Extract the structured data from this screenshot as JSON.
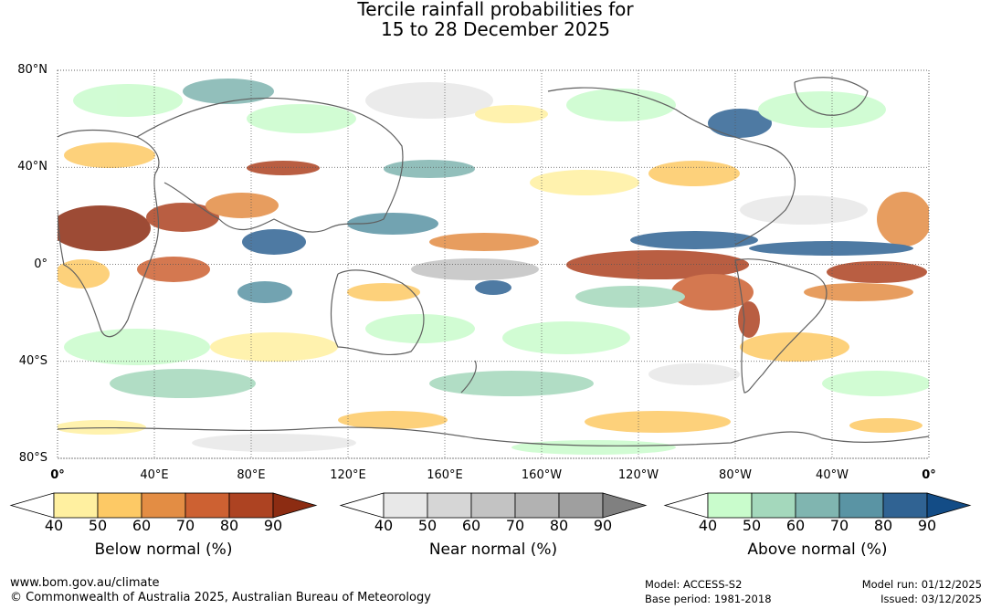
{
  "title": {
    "line1": "Tercile rainfall probabilities for",
    "line2": "15 to 28 December 2025"
  },
  "map": {
    "lat_labels": [
      "80°N",
      "40°N",
      "0°",
      "40°S",
      "80°S"
    ],
    "lon_labels": [
      "0°",
      "40°E",
      "80°E",
      "120°E",
      "160°E",
      "160°W",
      "120°W",
      "80°W",
      "40°W",
      "0°"
    ],
    "colors": {
      "ocean": "#ffffff",
      "land_outline": "#606060",
      "grid": "#555555"
    }
  },
  "colorbars": [
    {
      "name": "below",
      "title": "Below normal (%)",
      "ticks": [
        "40",
        "50",
        "60",
        "70",
        "80",
        "90"
      ],
      "colors": [
        "#ffffff",
        "#fff0a0",
        "#fdc965",
        "#e38d44",
        "#cd6132",
        "#ad4322",
        "#8c2c12"
      ]
    },
    {
      "name": "near",
      "title": "Near normal (%)",
      "ticks": [
        "40",
        "50",
        "60",
        "70",
        "80",
        "90"
      ],
      "colors": [
        "#ffffff",
        "#e8e8e8",
        "#d6d6d6",
        "#c3c3c3",
        "#b2b2b2",
        "#9f9f9f",
        "#808080"
      ]
    },
    {
      "name": "above",
      "title": "Above normal (%)",
      "ticks": [
        "40",
        "50",
        "60",
        "70",
        "80",
        "90"
      ],
      "colors": [
        "#ffffff",
        "#c9fccc",
        "#a4d8bc",
        "#80b5b0",
        "#5a94a4",
        "#306393",
        "#134c86"
      ]
    }
  ],
  "footer": {
    "website": "www.bom.gov.au/climate",
    "copyright": "© Commonwealth of Australia 2025, Australian Bureau of Meteorology",
    "model": "Model: ACCESS-S2",
    "base_period": "Base period: 1981-2018",
    "model_run": "Model run: 01/12/2025",
    "issued": "Issued: 03/12/2025"
  }
}
